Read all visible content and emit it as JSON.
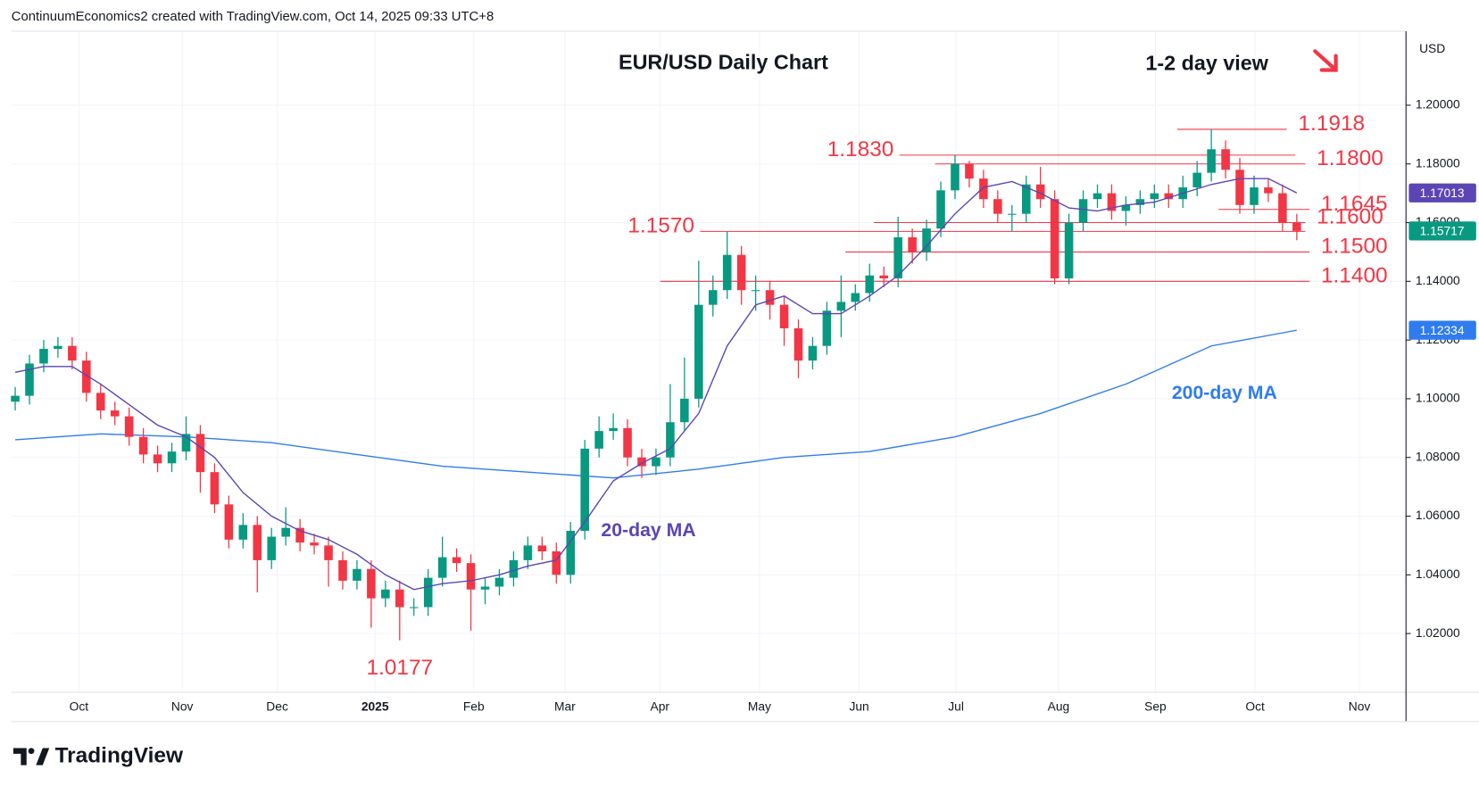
{
  "header": "ContinuumEconomics2 created with TradingView.com, Oct 14, 2025 09:33 UTC+8",
  "brand": "TradingView",
  "chart_data": {
    "type": "candlestick",
    "title": "EUR/USD Daily Chart",
    "subtitle": "1-2 day view",
    "currency": "USD",
    "open": [
      1.099,
      1.101,
      1.112,
      1.117,
      1.118,
      1.113,
      1.102,
      1.096,
      1.094,
      1.087,
      1.081,
      1.078,
      1.082,
      1.088,
      1.075,
      1.064,
      1.052,
      1.057,
      1.045,
      1.053,
      1.056,
      1.051,
      1.05,
      1.045,
      1.038,
      1.042,
      1.032,
      1.035,
      1.029,
      1.029,
      1.039,
      1.046,
      1.044,
      1.035,
      1.036,
      1.039,
      1.045,
      1.05,
      1.048,
      1.04,
      1.055,
      1.083,
      1.089,
      1.09,
      1.08,
      1.077,
      1.08,
      1.092,
      1.1,
      1.132,
      1.137,
      1.149,
      1.137,
      1.137,
      1.132,
      1.124,
      1.113,
      1.118,
      1.13,
      1.133,
      1.136,
      1.142,
      1.141,
      1.155,
      1.15,
      1.158,
      1.171,
      1.18,
      1.175,
      1.168,
      1.163,
      1.163,
      1.173,
      1.168,
      1.141,
      1.16,
      1.168,
      1.17,
      1.164,
      1.166,
      1.168,
      1.17,
      1.168,
      1.172,
      1.177,
      1.185,
      1.178,
      1.166,
      1.172,
      1.17,
      1.16
    ],
    "high": [
      1.104,
      1.115,
      1.12,
      1.121,
      1.121,
      1.116,
      1.105,
      1.099,
      1.097,
      1.09,
      1.084,
      1.085,
      1.094,
      1.091,
      1.078,
      1.067,
      1.061,
      1.06,
      1.056,
      1.063,
      1.059,
      1.054,
      1.053,
      1.048,
      1.045,
      1.045,
      1.038,
      1.038,
      1.032,
      1.042,
      1.053,
      1.049,
      1.047,
      1.039,
      1.042,
      1.048,
      1.053,
      1.053,
      1.051,
      1.058,
      1.086,
      1.094,
      1.095,
      1.093,
      1.083,
      1.083,
      1.105,
      1.114,
      1.147,
      1.142,
      1.157,
      1.152,
      1.142,
      1.14,
      1.135,
      1.127,
      1.121,
      1.133,
      1.142,
      1.139,
      1.146,
      1.145,
      1.162,
      1.158,
      1.161,
      1.174,
      1.183,
      1.181,
      1.178,
      1.171,
      1.166,
      1.176,
      1.179,
      1.171,
      1.163,
      1.171,
      1.173,
      1.173,
      1.169,
      1.171,
      1.173,
      1.173,
      1.176,
      1.181,
      1.1918,
      1.188,
      1.182,
      1.176,
      1.175,
      1.173,
      1.163
    ],
    "low": [
      1.096,
      1.098,
      1.109,
      1.114,
      1.11,
      1.099,
      1.093,
      1.091,
      1.084,
      1.078,
      1.075,
      1.075,
      1.079,
      1.068,
      1.061,
      1.049,
      1.049,
      1.034,
      1.042,
      1.05,
      1.048,
      1.047,
      1.036,
      1.035,
      1.035,
      1.022,
      1.029,
      1.0177,
      1.026,
      1.026,
      1.036,
      1.041,
      1.021,
      1.03,
      1.033,
      1.036,
      1.042,
      1.045,
      1.037,
      1.037,
      1.052,
      1.08,
      1.086,
      1.077,
      1.073,
      1.074,
      1.077,
      1.089,
      1.097,
      1.128,
      1.134,
      1.132,
      1.13,
      1.127,
      1.118,
      1.107,
      1.11,
      1.115,
      1.121,
      1.13,
      1.133,
      1.138,
      1.138,
      1.146,
      1.147,
      1.155,
      1.168,
      1.172,
      1.165,
      1.16,
      1.157,
      1.16,
      1.165,
      1.139,
      1.139,
      1.157,
      1.165,
      1.161,
      1.159,
      1.163,
      1.165,
      1.165,
      1.165,
      1.169,
      1.174,
      1.175,
      1.163,
      1.163,
      1.167,
      1.157,
      1.154
    ],
    "close": [
      1.101,
      1.112,
      1.117,
      1.118,
      1.113,
      1.102,
      1.096,
      1.094,
      1.087,
      1.081,
      1.078,
      1.082,
      1.088,
      1.075,
      1.064,
      1.052,
      1.057,
      1.045,
      1.053,
      1.056,
      1.051,
      1.05,
      1.045,
      1.038,
      1.042,
      1.032,
      1.035,
      1.029,
      1.029,
      1.039,
      1.046,
      1.044,
      1.035,
      1.036,
      1.039,
      1.045,
      1.05,
      1.048,
      1.04,
      1.055,
      1.083,
      1.089,
      1.09,
      1.08,
      1.077,
      1.08,
      1.092,
      1.1,
      1.132,
      1.137,
      1.149,
      1.137,
      1.137,
      1.132,
      1.124,
      1.113,
      1.118,
      1.13,
      1.133,
      1.136,
      1.142,
      1.141,
      1.155,
      1.15,
      1.158,
      1.171,
      1.18,
      1.175,
      1.168,
      1.163,
      1.163,
      1.173,
      1.168,
      1.141,
      1.16,
      1.168,
      1.17,
      1.164,
      1.166,
      1.168,
      1.17,
      1.168,
      1.172,
      1.177,
      1.185,
      1.178,
      1.166,
      1.172,
      1.17,
      1.16,
      1.15717
    ],
    "up_color": "#089981",
    "down_color": "#f23645",
    "moving_averages": [
      {
        "name": "20-day MA",
        "color": "#5b45b5",
        "x": [
          0,
          2,
          4,
          6,
          8,
          10,
          12,
          14,
          16,
          18,
          20,
          22,
          24,
          26,
          28,
          30,
          32,
          34,
          36,
          38,
          40,
          42,
          44,
          46,
          48,
          50,
          52,
          54,
          56,
          58,
          60,
          62,
          64,
          66,
          68,
          70,
          72,
          74,
          76,
          78,
          80,
          82,
          84,
          86,
          88,
          90
        ],
        "values": [
          1.109,
          1.111,
          1.111,
          1.105,
          1.098,
          1.091,
          1.087,
          1.08,
          1.068,
          1.06,
          1.055,
          1.052,
          1.047,
          1.04,
          1.035,
          1.037,
          1.038,
          1.04,
          1.043,
          1.045,
          1.058,
          1.072,
          1.078,
          1.083,
          1.095,
          1.118,
          1.132,
          1.135,
          1.129,
          1.129,
          1.135,
          1.142,
          1.152,
          1.163,
          1.172,
          1.174,
          1.17,
          1.165,
          1.164,
          1.166,
          1.167,
          1.17,
          1.173,
          1.175,
          1.175,
          1.17013
        ]
      },
      {
        "name": "200-day MA",
        "color": "#2f7cf0",
        "x": [
          0,
          6,
          12,
          18,
          24,
          30,
          36,
          42,
          48,
          54,
          60,
          66,
          72,
          78,
          84,
          90
        ],
        "values": [
          1.086,
          1.088,
          1.087,
          1.085,
          1.081,
          1.077,
          1.075,
          1.073,
          1.076,
          1.08,
          1.082,
          1.087,
          1.095,
          1.105,
          1.118,
          1.12334
        ]
      }
    ],
    "levels": [
      {
        "value": 1.1918,
        "label": "1.1918",
        "from": 81.6,
        "to": 89.3,
        "side": "right"
      },
      {
        "value": 1.183,
        "label": "1.1830",
        "from": 62.1,
        "to": 89.9,
        "side": "left"
      },
      {
        "value": 1.18,
        "label": "1.1800",
        "from": 64.6,
        "to": 90.6,
        "side": "right"
      },
      {
        "value": 1.1645,
        "label": "1.1645",
        "from": 84.5,
        "to": 90.9,
        "side": "right"
      },
      {
        "value": 1.16,
        "label": "1.1600",
        "from": 60.3,
        "to": 90.6,
        "side": "right"
      },
      {
        "value": 1.157,
        "label": "1.1570",
        "from": 48.1,
        "to": 90.6,
        "side": "left"
      },
      {
        "value": 1.15,
        "label": "1.1500",
        "from": 58.3,
        "to": 90.9,
        "side": "right"
      },
      {
        "value": 1.14,
        "label": "1.1400",
        "from": 45.3,
        "to": 90.9,
        "side": "right"
      }
    ],
    "level_color": "#f23645",
    "xlim": [
      -0.27,
      97.67
    ],
    "xticks": [
      {
        "value": 4.47,
        "label": "Oct"
      },
      {
        "value": 11.73,
        "label": "Nov"
      },
      {
        "value": 18.4,
        "label": "Dec"
      },
      {
        "value": 25.27,
        "label": "2025"
      },
      {
        "value": 32.2,
        "label": "Feb"
      },
      {
        "value": 38.6,
        "label": "Mar"
      },
      {
        "value": 45.27,
        "label": "Apr"
      },
      {
        "value": 52.27,
        "label": "May"
      },
      {
        "value": 59.27,
        "label": "Jun"
      },
      {
        "value": 66.07,
        "label": "Jul"
      },
      {
        "value": 73.27,
        "label": "Aug"
      },
      {
        "value": 80.07,
        "label": "Sep"
      },
      {
        "value": 87.07,
        "label": "Oct"
      },
      {
        "value": 94.4,
        "label": "Nov"
      }
    ],
    "ylim": [
      1.0,
      1.2252
    ],
    "yticks": [
      {
        "value": 1.02,
        "label": "1.02000"
      },
      {
        "value": 1.04,
        "label": "1.04000"
      },
      {
        "value": 1.06,
        "label": "1.06000"
      },
      {
        "value": 1.08,
        "label": "1.08000"
      },
      {
        "value": 1.1,
        "label": "1.10000"
      },
      {
        "value": 1.12,
        "label": "1.12000"
      },
      {
        "value": 1.14,
        "label": "1.14000"
      },
      {
        "value": 1.16,
        "label": "1.16000"
      },
      {
        "value": 1.18,
        "label": "1.18000"
      },
      {
        "value": 1.2,
        "label": "1.20000"
      }
    ],
    "grid": true
  }
}
